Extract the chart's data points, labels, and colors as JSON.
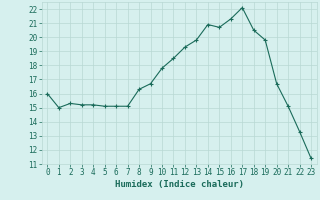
{
  "x": [
    0,
    1,
    2,
    3,
    4,
    5,
    6,
    7,
    8,
    9,
    10,
    11,
    12,
    13,
    14,
    15,
    16,
    17,
    18,
    19,
    20,
    21,
    22,
    23
  ],
  "y": [
    16,
    15,
    15.3,
    15.2,
    15.2,
    15.1,
    15.1,
    15.1,
    16.3,
    16.7,
    17.8,
    18.5,
    19.3,
    19.8,
    20.9,
    20.7,
    21.3,
    22.1,
    20.5,
    19.8,
    16.7,
    15.1,
    13.3,
    11.4
  ],
  "xlabel": "Humidex (Indice chaleur)",
  "xlim": [
    -0.5,
    23.5
  ],
  "ylim": [
    11,
    22.5
  ],
  "yticks": [
    11,
    12,
    13,
    14,
    15,
    16,
    17,
    18,
    19,
    20,
    21,
    22
  ],
  "xticks": [
    0,
    1,
    2,
    3,
    4,
    5,
    6,
    7,
    8,
    9,
    10,
    11,
    12,
    13,
    14,
    15,
    16,
    17,
    18,
    19,
    20,
    21,
    22,
    23
  ],
  "line_color": "#1a6b5a",
  "marker": "+",
  "bg_color": "#d6f0ee",
  "grid_color": "#b8d8d4",
  "title_fontsize": 7,
  "label_fontsize": 6.5,
  "tick_fontsize": 5.5
}
